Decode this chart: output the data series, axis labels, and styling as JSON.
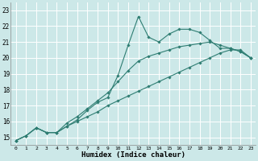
{
  "title": "",
  "xlabel": "Humidex (Indice chaleur)",
  "bg_color": "#cce8e8",
  "line_color": "#2e7d72",
  "grid_color": "#ffffff",
  "xlim": [
    -0.5,
    23.5
  ],
  "ylim": [
    14.5,
    23.5
  ],
  "yticks": [
    15,
    16,
    17,
    18,
    19,
    20,
    21,
    22,
    23
  ],
  "xticks": [
    0,
    1,
    2,
    3,
    4,
    5,
    6,
    7,
    8,
    9,
    10,
    11,
    12,
    13,
    14,
    15,
    16,
    17,
    18,
    19,
    20,
    21,
    22,
    23
  ],
  "lines": [
    {
      "x": [
        0,
        1,
        2,
        3,
        4,
        5,
        6,
        7,
        8,
        9,
        10,
        11,
        12,
        13,
        14,
        15,
        16,
        17,
        18,
        19,
        20,
        21,
        22,
        23
      ],
      "y": [
        14.8,
        15.1,
        15.6,
        15.3,
        15.3,
        15.7,
        16.1,
        16.7,
        17.2,
        17.5,
        18.9,
        20.8,
        22.6,
        21.3,
        21.0,
        21.5,
        21.8,
        21.8,
        21.6,
        21.1,
        20.6,
        20.6,
        20.4,
        20.0
      ]
    },
    {
      "x": [
        0,
        1,
        2,
        3,
        4,
        5,
        6,
        7,
        8,
        9,
        10,
        11,
        12,
        13,
        14,
        15,
        16,
        17,
        18,
        19,
        20,
        21,
        22,
        23
      ],
      "y": [
        14.8,
        15.1,
        15.6,
        15.3,
        15.3,
        15.9,
        16.3,
        16.8,
        17.3,
        17.8,
        18.5,
        19.2,
        19.8,
        20.1,
        20.3,
        20.5,
        20.7,
        20.8,
        20.9,
        21.0,
        20.8,
        20.6,
        20.4,
        20.0
      ]
    },
    {
      "x": [
        0,
        1,
        2,
        3,
        4,
        5,
        6,
        7,
        8,
        9,
        10,
        11,
        12,
        13,
        14,
        15,
        16,
        17,
        18,
        19,
        20,
        21,
        22,
        23
      ],
      "y": [
        14.8,
        15.1,
        15.6,
        15.3,
        15.3,
        15.7,
        16.0,
        16.3,
        16.6,
        17.0,
        17.3,
        17.6,
        17.9,
        18.2,
        18.5,
        18.8,
        19.1,
        19.4,
        19.7,
        20.0,
        20.3,
        20.5,
        20.5,
        20.0
      ]
    }
  ]
}
